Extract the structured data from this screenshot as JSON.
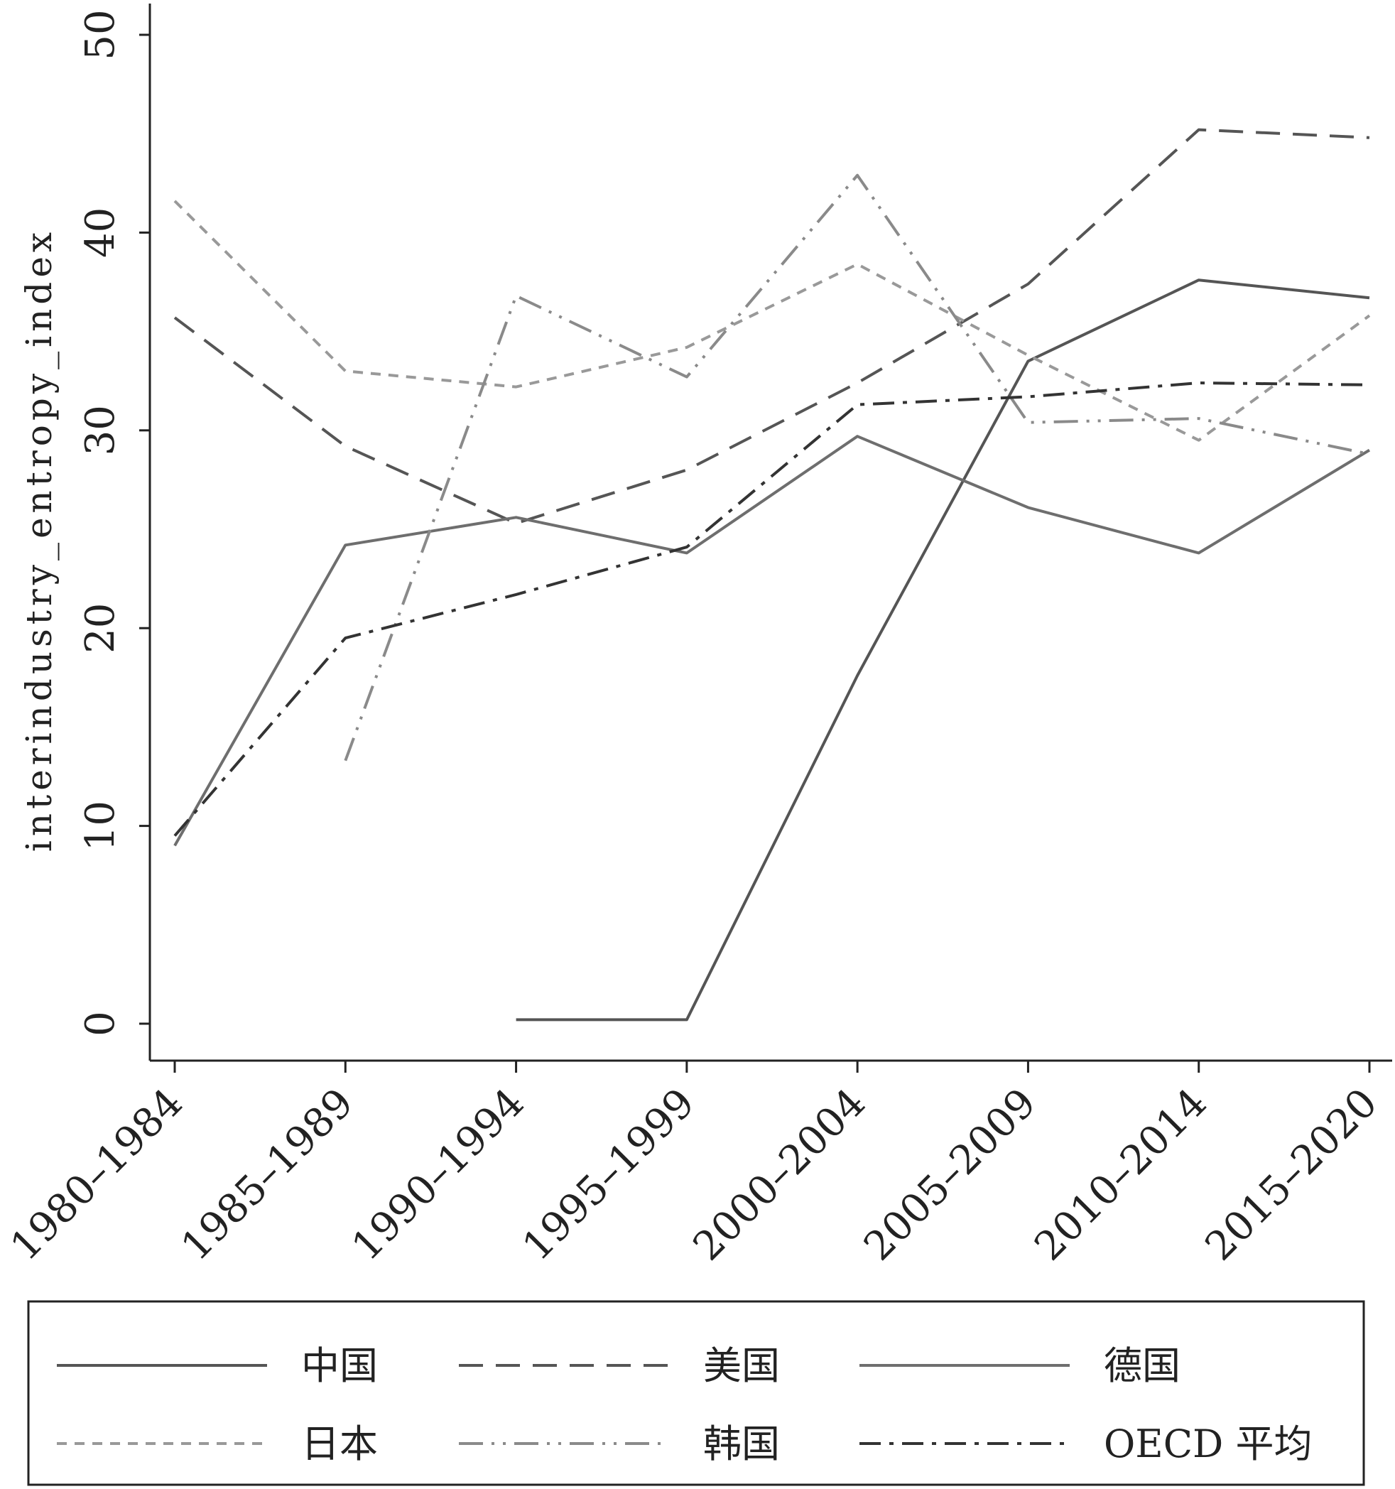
{
  "chart_data": {
    "type": "line",
    "title": "",
    "xlabel": "",
    "ylabel": "interindustry_entropy_index",
    "categories": [
      "1980–1984",
      "1985–1989",
      "1990–1994",
      "1995–1999",
      "2000–2004",
      "2005–2009",
      "2010–2014",
      "2015–2020"
    ],
    "ylim": [
      0,
      50
    ],
    "yticks": [
      0,
      10,
      20,
      30,
      40,
      50
    ],
    "grid": false,
    "legend_position": "bottom",
    "series": [
      {
        "name": "中国",
        "color": "#555555",
        "dash": "solid",
        "values": [
          null,
          null,
          0.2,
          0.2,
          17.6,
          33.5,
          37.6,
          36.7
        ]
      },
      {
        "name": "美国",
        "color": "#555555",
        "dash": "longdash",
        "values": [
          35.7,
          29.2,
          25.3,
          28.0,
          32.4,
          37.4,
          45.2,
          44.8
        ]
      },
      {
        "name": "德国",
        "color": "#6e6e6e",
        "dash": "solid",
        "values": [
          9.0,
          24.2,
          25.6,
          23.8,
          29.7,
          26.1,
          23.8,
          29.0
        ]
      },
      {
        "name": "日本",
        "color": "#999999",
        "dash": "shortdash",
        "values": [
          41.6,
          33.0,
          32.2,
          34.2,
          38.4,
          33.8,
          29.5,
          35.8
        ]
      },
      {
        "name": "韩国",
        "color": "#8a8a8a",
        "dash": "longdashdotdot",
        "values": [
          null,
          13.3,
          36.8,
          32.7,
          42.9,
          30.4,
          30.6,
          28.8
        ]
      },
      {
        "name": "OECD 平均",
        "color": "#333333",
        "dash": "dashdot",
        "values": [
          9.5,
          19.5,
          21.7,
          24.1,
          31.3,
          31.7,
          32.4,
          32.3
        ]
      }
    ]
  }
}
